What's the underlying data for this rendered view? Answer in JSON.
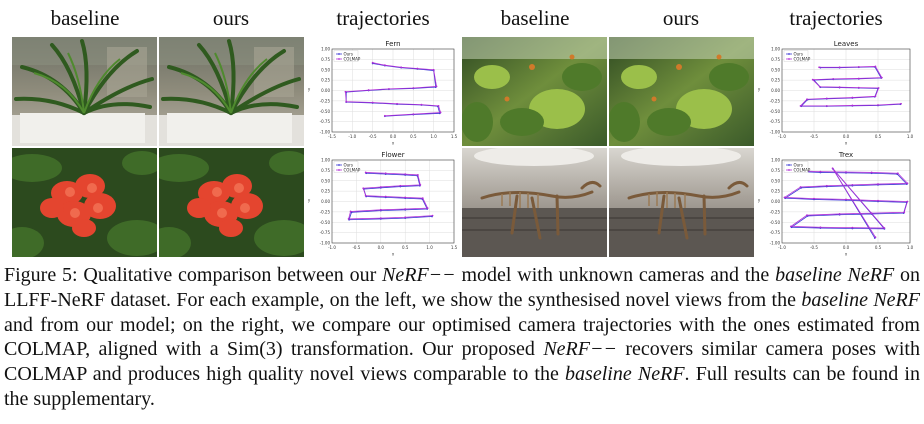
{
  "headers": [
    "baseline",
    "ours",
    "trajectories",
    "baseline",
    "ours",
    "trajectories"
  ],
  "photos": [
    {
      "scene": "fern",
      "method": "baseline"
    },
    {
      "scene": "fern",
      "method": "ours"
    },
    {
      "scene": "leaves",
      "method": "baseline"
    },
    {
      "scene": "leaves",
      "method": "ours"
    },
    {
      "scene": "flower",
      "method": "baseline"
    },
    {
      "scene": "flower",
      "method": "ours"
    },
    {
      "scene": "trex",
      "method": "baseline"
    },
    {
      "scene": "trex",
      "method": "ours"
    }
  ],
  "plot_colors": {
    "ours": "#3b3bd6",
    "colmap": "#b12fd6"
  },
  "chart_data": [
    {
      "type": "line",
      "title": "Fern",
      "xlabel": "x",
      "ylabel": "y",
      "xlim": [
        -1.5,
        1.5
      ],
      "ylim": [
        -1.0,
        1.0
      ],
      "xticks": [
        "-1.5",
        "-1.0",
        "-0.5",
        "0.0",
        "0.5",
        "1.0",
        "1.5"
      ],
      "yticks": [
        "-1.00",
        "-0.75",
        "-0.50",
        "-0.25",
        "0.00",
        "0.25",
        "0.50",
        "0.75",
        "1.00"
      ],
      "legend": "top-left",
      "series": [
        {
          "name": "Ours",
          "x": [
            -0.5,
            -0.2,
            0.2,
            0.6,
            1.0,
            1.05,
            0.5,
            -0.1,
            -0.6,
            -1.15,
            -1.15,
            -0.5,
            0.1,
            0.7,
            1.1,
            1.15,
            0.5,
            -0.2
          ],
          "y": [
            0.65,
            0.6,
            0.55,
            0.52,
            0.48,
            0.08,
            0.05,
            0.03,
            0.0,
            -0.04,
            -0.28,
            -0.3,
            -0.33,
            -0.35,
            -0.38,
            -0.55,
            -0.58,
            -0.62
          ]
        },
        {
          "name": "COLMAP",
          "x": [
            -0.5,
            -0.2,
            0.2,
            0.6,
            1.0,
            1.07,
            0.5,
            -0.1,
            -0.6,
            -1.17,
            -1.15,
            -0.5,
            0.1,
            0.7,
            1.12,
            1.17,
            0.5,
            -0.2
          ],
          "y": [
            0.67,
            0.61,
            0.56,
            0.53,
            0.5,
            0.1,
            0.06,
            0.04,
            0.01,
            -0.03,
            -0.27,
            -0.29,
            -0.32,
            -0.34,
            -0.37,
            -0.53,
            -0.57,
            -0.61
          ]
        }
      ]
    },
    {
      "type": "line",
      "title": "Leaves",
      "xlabel": "x",
      "ylabel": "y",
      "xlim": [
        -1.0,
        1.0
      ],
      "ylim": [
        -1.0,
        1.0
      ],
      "xticks": [
        "-1.0",
        "-0.5",
        "0.0",
        "0.5",
        "1.0"
      ],
      "yticks": [
        "-1.00",
        "-0.75",
        "-0.50",
        "-0.25",
        "0.00",
        "0.25",
        "0.50",
        "0.75",
        "1.00"
      ],
      "legend": "top-left",
      "series": [
        {
          "name": "Ours",
          "x": [
            -0.4,
            -0.1,
            0.2,
            0.45,
            0.55,
            0.2,
            -0.2,
            -0.5,
            -0.4,
            -0.1,
            0.2,
            0.5,
            0.45,
            0.1,
            -0.3,
            -0.6,
            -0.7,
            -0.3,
            0.1,
            0.5,
            0.85
          ],
          "y": [
            0.55,
            0.55,
            0.56,
            0.57,
            0.3,
            0.28,
            0.27,
            0.25,
            0.08,
            0.07,
            0.06,
            0.05,
            -0.15,
            -0.18,
            -0.2,
            -0.22,
            -0.38,
            -0.38,
            -0.37,
            -0.36,
            -0.33
          ]
        },
        {
          "name": "COLMAP",
          "x": [
            -0.42,
            -0.1,
            0.2,
            0.46,
            0.56,
            0.2,
            -0.2,
            -0.52,
            -0.41,
            -0.1,
            0.2,
            0.51,
            0.46,
            0.1,
            -0.3,
            -0.61,
            -0.71,
            -0.3,
            0.1,
            0.5,
            0.86
          ],
          "y": [
            0.56,
            0.56,
            0.57,
            0.58,
            0.31,
            0.29,
            0.28,
            0.26,
            0.09,
            0.08,
            0.07,
            0.06,
            -0.14,
            -0.17,
            -0.19,
            -0.21,
            -0.37,
            -0.37,
            -0.36,
            -0.35,
            -0.32
          ]
        }
      ]
    },
    {
      "type": "line",
      "title": "Flower",
      "xlabel": "x",
      "ylabel": "y",
      "xlim": [
        -1.0,
        1.5
      ],
      "ylim": [
        -1.0,
        1.0
      ],
      "xticks": [
        "-1.0",
        "-0.5",
        "0.0",
        "0.5",
        "1.0",
        "1.5"
      ],
      "yticks": [
        "-1.00",
        "-0.75",
        "-0.50",
        "-0.25",
        "0.00",
        "0.25",
        "0.50",
        "0.75",
        "1.00"
      ],
      "legend": "top-left",
      "series": [
        {
          "name": "Ours",
          "x": [
            -0.3,
            0.1,
            0.5,
            0.75,
            0.8,
            0.4,
            0.0,
            -0.35,
            -0.3,
            0.1,
            0.5,
            0.85,
            0.95,
            0.5,
            0.0,
            -0.6,
            -0.65,
            0.0,
            0.5,
            1.05
          ],
          "y": [
            0.68,
            0.66,
            0.64,
            0.62,
            0.38,
            0.36,
            0.33,
            0.3,
            0.12,
            0.1,
            0.08,
            0.06,
            -0.18,
            -0.2,
            -0.22,
            -0.26,
            -0.44,
            -0.42,
            -0.4,
            -0.36
          ]
        },
        {
          "name": "COLMAP",
          "x": [
            -0.31,
            0.1,
            0.5,
            0.76,
            0.81,
            0.4,
            0.0,
            -0.36,
            -0.31,
            0.1,
            0.5,
            0.86,
            0.96,
            0.5,
            0.0,
            -0.62,
            -0.66,
            0.0,
            0.5,
            1.06
          ],
          "y": [
            0.7,
            0.68,
            0.66,
            0.64,
            0.4,
            0.38,
            0.35,
            0.32,
            0.14,
            0.12,
            0.1,
            0.08,
            -0.16,
            -0.18,
            -0.2,
            -0.24,
            -0.42,
            -0.4,
            -0.38,
            -0.34
          ]
        }
      ]
    },
    {
      "type": "line",
      "title": "Trex",
      "xlabel": "x",
      "ylabel": "y",
      "xlim": [
        -1.0,
        1.0
      ],
      "ylim": [
        -1.0,
        1.0
      ],
      "xticks": [
        "-1.0",
        "-0.5",
        "0.0",
        "0.5",
        "1.0"
      ],
      "yticks": [
        "-1.00",
        "-0.75",
        "-0.50",
        "-0.25",
        "0.00",
        "0.25",
        "0.50",
        "0.75",
        "1.00"
      ],
      "legend": "top-left",
      "series": [
        {
          "name": "Ours",
          "x": [
            -0.75,
            -0.4,
            0.0,
            0.4,
            0.8,
            0.95,
            0.5,
            0.1,
            -0.3,
            -0.7,
            -0.95,
            -0.5,
            0.0,
            0.5,
            0.95,
            0.9,
            0.4,
            -0.1,
            -0.6,
            -0.85,
            -0.4,
            0.1,
            0.6,
            -0.2,
            0.45
          ],
          "y": [
            0.72,
            0.7,
            0.69,
            0.68,
            0.66,
            0.42,
            0.4,
            0.38,
            0.36,
            0.33,
            0.08,
            0.05,
            0.03,
            0.0,
            -0.02,
            -0.28,
            -0.3,
            -0.32,
            -0.35,
            -0.62,
            -0.64,
            -0.65,
            -0.66,
            0.78,
            -0.88
          ]
        },
        {
          "name": "COLMAP",
          "x": [
            -0.76,
            -0.4,
            0.0,
            0.4,
            0.81,
            0.96,
            0.5,
            0.1,
            -0.3,
            -0.71,
            -0.96,
            -0.5,
            0.0,
            0.5,
            0.96,
            0.91,
            0.4,
            -0.1,
            -0.61,
            -0.86,
            -0.4,
            0.1,
            0.6,
            -0.21,
            0.46
          ],
          "y": [
            0.74,
            0.72,
            0.71,
            0.7,
            0.68,
            0.44,
            0.42,
            0.4,
            0.38,
            0.35,
            0.1,
            0.07,
            0.05,
            0.02,
            0.0,
            -0.26,
            -0.28,
            -0.3,
            -0.33,
            -0.6,
            -0.62,
            -0.63,
            -0.64,
            0.8,
            -0.86
          ]
        }
      ]
    }
  ],
  "caption": {
    "label": "Figure 5:",
    "parts": [
      {
        "text": " Qualitative comparison between our ",
        "italic": false
      },
      {
        "text": "NeRF−−",
        "italic": true
      },
      {
        "text": " model with unknown cameras and the ",
        "italic": false
      },
      {
        "text": "baseline NeRF",
        "italic": true
      },
      {
        "text": " on LLFF-NeRF dataset. For each example, on the left, we show the synthesised novel views from the ",
        "italic": false
      },
      {
        "text": "baseline NeRF",
        "italic": true
      },
      {
        "text": " and from our model; on the right, we compare our optimised camera trajectories with the ones estimated from COLMAP, aligned with a Sim(3) transformation. Our proposed ",
        "italic": false
      },
      {
        "text": "NeRF−−",
        "italic": true
      },
      {
        "text": " recovers similar camera poses with COLMAP and produces high quality novel views comparable to the ",
        "italic": false
      },
      {
        "text": "baseline NeRF",
        "italic": true
      },
      {
        "text": ". Full results can be found in the supplementary.",
        "italic": false
      }
    ]
  }
}
